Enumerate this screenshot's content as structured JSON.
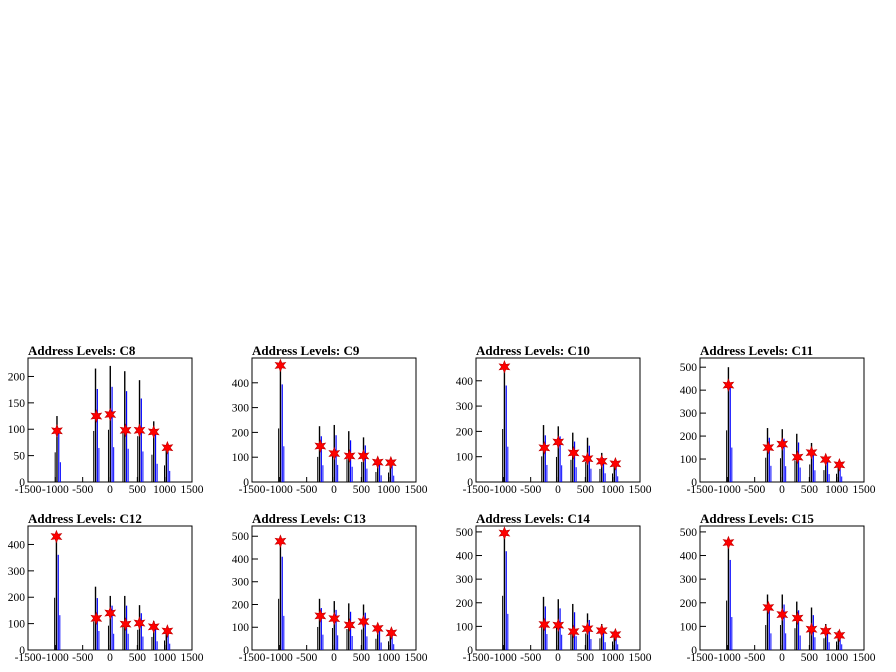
{
  "chart_data": [
    {
      "type": "bar",
      "title": "Address Levels: C8",
      "xticks": [
        -1500,
        -1000,
        -500,
        0,
        500,
        1000,
        1500
      ],
      "yticks": [
        0,
        50,
        100,
        150,
        200
      ],
      "xlim": [
        -1500,
        1500
      ],
      "ylim": [
        0,
        235
      ],
      "colors": {
        "hist_a": "#000000",
        "hist_b": "#0000ff",
        "marker": "#ff0000"
      },
      "peaks": [
        {
          "x": -970,
          "value": 125
        },
        {
          "x": -265,
          "value": 215
        },
        {
          "x": 5,
          "value": 220
        },
        {
          "x": 270,
          "value": 210
        },
        {
          "x": 540,
          "value": 193
        },
        {
          "x": 800,
          "value": 115
        },
        {
          "x": 1030,
          "value": 70
        }
      ],
      "markers": [
        {
          "x": -970,
          "value": 97
        },
        {
          "x": -250,
          "value": 125
        },
        {
          "x": 5,
          "value": 128
        },
        {
          "x": 285,
          "value": 98
        },
        {
          "x": 540,
          "value": 98
        },
        {
          "x": 800,
          "value": 95
        },
        {
          "x": 1050,
          "value": 65
        }
      ]
    },
    {
      "type": "bar",
      "title": "Address Levels: C9",
      "xticks": [
        -1500,
        -1000,
        -500,
        0,
        500,
        1000,
        1500
      ],
      "yticks": [
        0,
        100,
        200,
        300,
        400
      ],
      "xlim": [
        -1500,
        1500
      ],
      "ylim": [
        0,
        500
      ],
      "colors": {
        "hist_a": "#000000",
        "hist_b": "#0000ff",
        "marker": "#ff0000"
      },
      "peaks": [
        {
          "x": -980,
          "value": 480
        },
        {
          "x": -265,
          "value": 225
        },
        {
          "x": 5,
          "value": 230
        },
        {
          "x": 270,
          "value": 205
        },
        {
          "x": 540,
          "value": 180
        },
        {
          "x": 800,
          "value": 90
        },
        {
          "x": 1030,
          "value": 85
        }
      ],
      "markers": [
        {
          "x": -980,
          "value": 470
        },
        {
          "x": -250,
          "value": 145
        },
        {
          "x": 5,
          "value": 115
        },
        {
          "x": 285,
          "value": 105
        },
        {
          "x": 540,
          "value": 105
        },
        {
          "x": 800,
          "value": 80
        },
        {
          "x": 1040,
          "value": 78
        }
      ]
    },
    {
      "type": "bar",
      "title": "Address Levels: C10",
      "xticks": [
        -1500,
        -1000,
        -500,
        0,
        500,
        1000,
        1500
      ],
      "yticks": [
        0,
        100,
        200,
        300,
        400
      ],
      "xlim": [
        -1500,
        1500
      ],
      "ylim": [
        0,
        490
      ],
      "colors": {
        "hist_a": "#000000",
        "hist_b": "#0000ff",
        "marker": "#ff0000"
      },
      "peaks": [
        {
          "x": -980,
          "value": 465
        },
        {
          "x": -265,
          "value": 225
        },
        {
          "x": 5,
          "value": 220
        },
        {
          "x": 270,
          "value": 195
        },
        {
          "x": 540,
          "value": 175
        },
        {
          "x": 800,
          "value": 115
        },
        {
          "x": 1030,
          "value": 75
        }
      ],
      "markers": [
        {
          "x": -980,
          "value": 455
        },
        {
          "x": -250,
          "value": 135
        },
        {
          "x": 5,
          "value": 158
        },
        {
          "x": 285,
          "value": 115
        },
        {
          "x": 540,
          "value": 92
        },
        {
          "x": 800,
          "value": 82
        },
        {
          "x": 1050,
          "value": 72
        }
      ]
    },
    {
      "type": "bar",
      "title": "Address Levels: C11",
      "xticks": [
        -1500,
        -1000,
        -500,
        0,
        500,
        1000,
        1500
      ],
      "yticks": [
        0,
        100,
        200,
        300,
        400,
        500
      ],
      "xlim": [
        -1500,
        1500
      ],
      "ylim": [
        0,
        540
      ],
      "colors": {
        "hist_a": "#000000",
        "hist_b": "#0000ff",
        "marker": "#ff0000"
      },
      "peaks": [
        {
          "x": -980,
          "value": 500
        },
        {
          "x": -265,
          "value": 235
        },
        {
          "x": 5,
          "value": 230
        },
        {
          "x": 270,
          "value": 210
        },
        {
          "x": 540,
          "value": 170
        },
        {
          "x": 800,
          "value": 115
        },
        {
          "x": 1030,
          "value": 80
        }
      ],
      "markers": [
        {
          "x": -980,
          "value": 422
        },
        {
          "x": -250,
          "value": 150
        },
        {
          "x": 5,
          "value": 165
        },
        {
          "x": 285,
          "value": 108
        },
        {
          "x": 540,
          "value": 128
        },
        {
          "x": 800,
          "value": 98
        },
        {
          "x": 1050,
          "value": 75
        }
      ]
    },
    {
      "type": "bar",
      "title": "Address Levels: C12",
      "xticks": [
        -1500,
        -1000,
        -500,
        0,
        500,
        1000,
        1500
      ],
      "yticks": [
        0,
        100,
        200,
        300,
        400
      ],
      "xlim": [
        -1500,
        1500
      ],
      "ylim": [
        0,
        470
      ],
      "colors": {
        "hist_a": "#000000",
        "hist_b": "#0000ff",
        "marker": "#ff0000"
      },
      "peaks": [
        {
          "x": -980,
          "value": 440
        },
        {
          "x": -265,
          "value": 240
        },
        {
          "x": 5,
          "value": 205
        },
        {
          "x": 270,
          "value": 205
        },
        {
          "x": 540,
          "value": 170
        },
        {
          "x": 800,
          "value": 110
        },
        {
          "x": 1030,
          "value": 80
        }
      ],
      "markers": [
        {
          "x": -980,
          "value": 430
        },
        {
          "x": -250,
          "value": 120
        },
        {
          "x": 5,
          "value": 140
        },
        {
          "x": 285,
          "value": 98
        },
        {
          "x": 540,
          "value": 102
        },
        {
          "x": 800,
          "value": 88
        },
        {
          "x": 1050,
          "value": 72
        }
      ]
    },
    {
      "type": "bar",
      "title": "Address Levels: C13",
      "xticks": [
        -1500,
        -1000,
        -500,
        0,
        500,
        1000,
        1500
      ],
      "yticks": [
        0,
        100,
        200,
        300,
        400,
        500
      ],
      "xlim": [
        -1500,
        1500
      ],
      "ylim": [
        0,
        545
      ],
      "colors": {
        "hist_a": "#000000",
        "hist_b": "#0000ff",
        "marker": "#ff0000"
      },
      "peaks": [
        {
          "x": -980,
          "value": 500
        },
        {
          "x": -265,
          "value": 225
        },
        {
          "x": 5,
          "value": 215
        },
        {
          "x": 270,
          "value": 205
        },
        {
          "x": 540,
          "value": 200
        },
        {
          "x": 800,
          "value": 110
        },
        {
          "x": 1030,
          "value": 85
        }
      ],
      "markers": [
        {
          "x": -980,
          "value": 478
        },
        {
          "x": -250,
          "value": 150
        },
        {
          "x": 5,
          "value": 138
        },
        {
          "x": 285,
          "value": 110
        },
        {
          "x": 540,
          "value": 125
        },
        {
          "x": 800,
          "value": 95
        },
        {
          "x": 1050,
          "value": 75
        }
      ]
    },
    {
      "type": "bar",
      "title": "Address Levels: C14",
      "xticks": [
        -1500,
        -1000,
        -500,
        0,
        500,
        1000,
        1500
      ],
      "yticks": [
        0,
        100,
        200,
        300,
        400,
        500
      ],
      "xlim": [
        -1500,
        1500
      ],
      "ylim": [
        0,
        525
      ],
      "colors": {
        "hist_a": "#000000",
        "hist_b": "#0000ff",
        "marker": "#ff0000"
      },
      "peaks": [
        {
          "x": -980,
          "value": 510
        },
        {
          "x": -265,
          "value": 225
        },
        {
          "x": 5,
          "value": 215
        },
        {
          "x": 270,
          "value": 195
        },
        {
          "x": 540,
          "value": 155
        },
        {
          "x": 800,
          "value": 110
        },
        {
          "x": 1030,
          "value": 80
        }
      ],
      "markers": [
        {
          "x": -980,
          "value": 495
        },
        {
          "x": -250,
          "value": 108
        },
        {
          "x": 5,
          "value": 105
        },
        {
          "x": 285,
          "value": 78
        },
        {
          "x": 540,
          "value": 90
        },
        {
          "x": 800,
          "value": 82
        },
        {
          "x": 1050,
          "value": 65
        }
      ]
    },
    {
      "type": "bar",
      "title": "Address Levels: C15",
      "xticks": [
        -1500,
        -1000,
        -500,
        0,
        500,
        1000,
        1500
      ],
      "yticks": [
        0,
        100,
        200,
        300,
        400,
        500
      ],
      "xlim": [
        -1500,
        1500
      ],
      "ylim": [
        0,
        525
      ],
      "colors": {
        "hist_a": "#000000",
        "hist_b": "#0000ff",
        "marker": "#ff0000"
      },
      "peaks": [
        {
          "x": -980,
          "value": 465
        },
        {
          "x": -265,
          "value": 235
        },
        {
          "x": 5,
          "value": 235
        },
        {
          "x": 270,
          "value": 205
        },
        {
          "x": 540,
          "value": 180
        },
        {
          "x": 800,
          "value": 110
        },
        {
          "x": 1030,
          "value": 80
        }
      ],
      "markers": [
        {
          "x": -980,
          "value": 455
        },
        {
          "x": -250,
          "value": 180
        },
        {
          "x": 5,
          "value": 150
        },
        {
          "x": 285,
          "value": 135
        },
        {
          "x": 540,
          "value": 88
        },
        {
          "x": 800,
          "value": 80
        },
        {
          "x": 1050,
          "value": 62
        }
      ]
    }
  ]
}
